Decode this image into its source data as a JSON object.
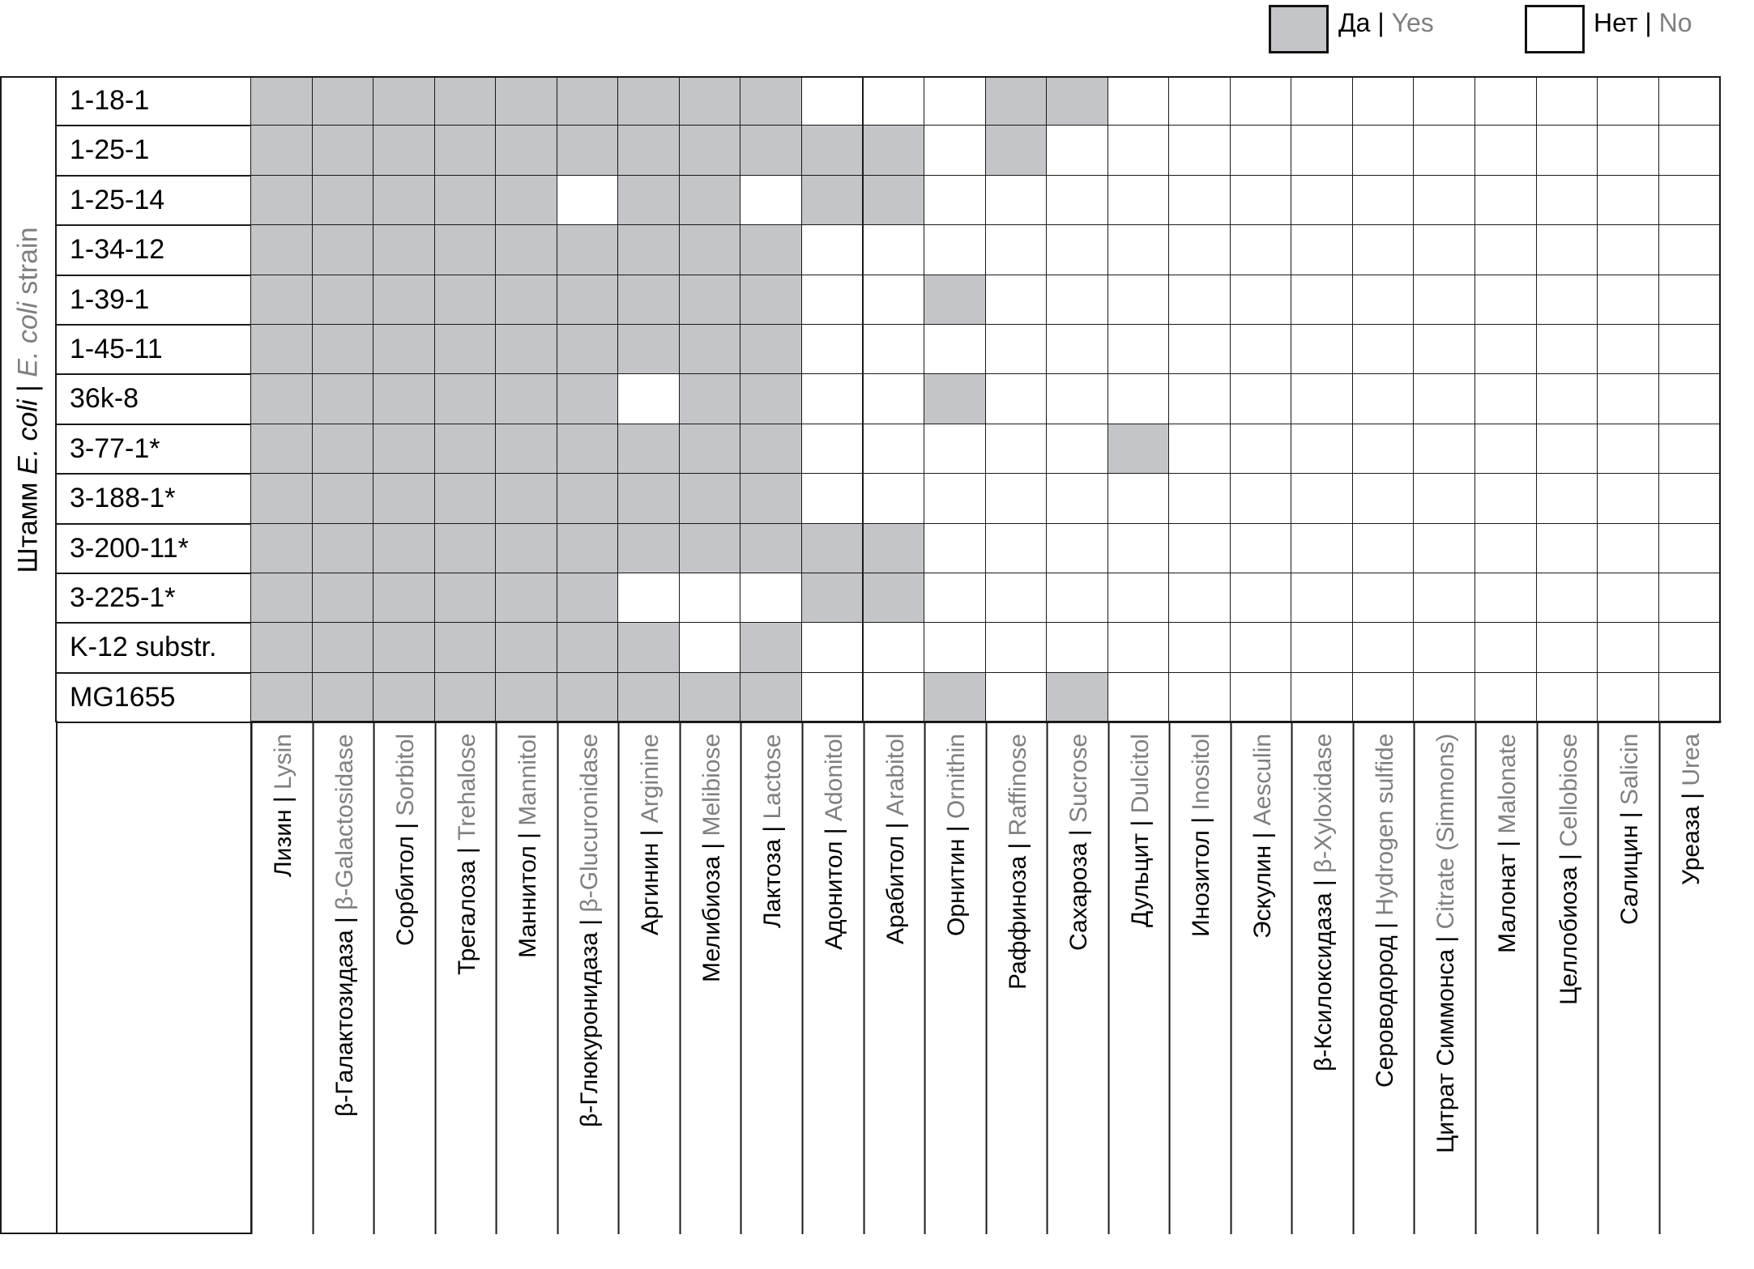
{
  "legend": {
    "yes": {
      "ru": "Да",
      "sep": " | ",
      "en": "Yes"
    },
    "no": {
      "ru": "Нет",
      "sep": " | ",
      "en": "No"
    }
  },
  "strain_axis": {
    "ru": "Штамм ",
    "ru_italic": "E. coli",
    "sep": " | ",
    "en_italic": "E. coli",
    "en": " strain"
  },
  "colors": {
    "yes": "#c4c5c8",
    "no": "#ffffff",
    "english_text": "#7f7f7f",
    "grid": "#1a1a1a"
  },
  "tests": [
    {
      "ru": "Лизин",
      "en": "Lysin"
    },
    {
      "ru": "β-Галактозидаза",
      "en": "β-Galactosidase"
    },
    {
      "ru": "Сорбитол",
      "en": "Sorbitol"
    },
    {
      "ru": "Трегалоза",
      "en": "Trehalose"
    },
    {
      "ru": "Маннитол",
      "en": "Mannitol"
    },
    {
      "ru": "β-Глюкуронидаза",
      "en": "β-Glucuronidase"
    },
    {
      "ru": "Аргинин",
      "en": "Arginine"
    },
    {
      "ru": "Мелибиоза",
      "en": "Melibiose"
    },
    {
      "ru": "Лактоза",
      "en": "Lactose"
    },
    {
      "ru": "Адонитол",
      "en": "Adonitol"
    },
    {
      "ru": "Арабитол",
      "en": "Arabitol"
    },
    {
      "ru": "Орнитин",
      "en": "Ornithin"
    },
    {
      "ru": "Раффиноза",
      "en": "Raffinose"
    },
    {
      "ru": "Сахароза",
      "en": "Sucrose"
    },
    {
      "ru": "Дульцит",
      "en": "Dulcitol"
    },
    {
      "ru": "Инозитол",
      "en": "Inositol"
    },
    {
      "ru": "Эскулин",
      "en": "Aesculin"
    },
    {
      "ru": "β-Ксилоксидаза",
      "en": "β-Xyloxidase"
    },
    {
      "ru": "Сероводород",
      "en": "Hydrogen sulfide"
    },
    {
      "ru": "Цитрат Симмонса",
      "en": "Citrate (Simmons)"
    },
    {
      "ru": "Малонат",
      "en": "Malonate"
    },
    {
      "ru": "Целлобиоза",
      "en": "Cellobiose"
    },
    {
      "ru": "Салицин",
      "en": "Salicin"
    },
    {
      "ru": "Уреаза",
      "en": "Urea"
    }
  ],
  "strains": [
    {
      "name": "1-18-1",
      "results": "111111111000110000000000"
    },
    {
      "name": "1-25-1",
      "results": "111111111110100000000000"
    },
    {
      "name": "1-25-14",
      "results": "111110110110000000000000"
    },
    {
      "name": "1-34-12",
      "results": "111111111000000000000000"
    },
    {
      "name": "1-39-1",
      "results": "111111111001000000000000"
    },
    {
      "name": "1-45-11",
      "results": "111111111000000000000000"
    },
    {
      "name": "36k-8",
      "results": "111111011001000000000000"
    },
    {
      "name": "3-77-1*",
      "results": "111111111000001000000000"
    },
    {
      "name": "3-188-1*",
      "results": "111111111000000000000000"
    },
    {
      "name": "3-200-11*",
      "results": "111111111110000000000000"
    },
    {
      "name": "3-225-1*",
      "results": "111111000110000000000000"
    },
    {
      "name": "K-12 substr.",
      "results": "111111101000000000000000"
    },
    {
      "name": "MG1655",
      "results": "111111111001010000000000"
    }
  ]
}
